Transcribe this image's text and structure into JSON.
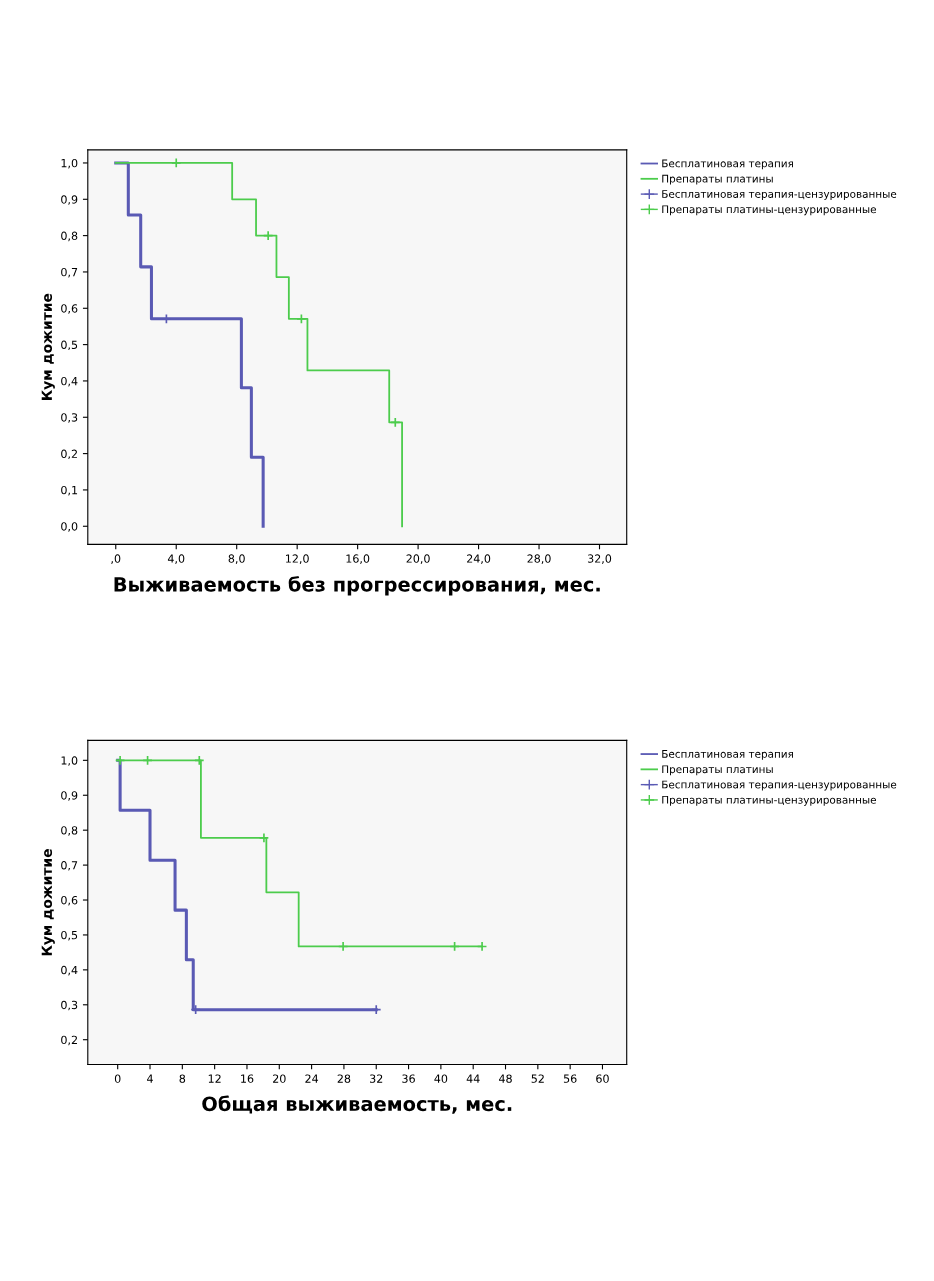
{
  "chart_data": [
    {
      "type": "step",
      "xlabel": "Выживаемость без прогрессирования, мес.",
      "ylabel": "Кум дожитие",
      "xlim": [
        -1.85,
        33.8
      ],
      "ylim": [
        -0.05,
        1.036
      ],
      "xticks": [
        {
          "value": 0,
          "label": ",0"
        },
        {
          "value": 4,
          "label": "4,0"
        },
        {
          "value": 8,
          "label": "8,0"
        },
        {
          "value": 12,
          "label": "12,0"
        },
        {
          "value": 16,
          "label": "16,0"
        },
        {
          "value": 20,
          "label": "20,0"
        },
        {
          "value": 24,
          "label": "24,0"
        },
        {
          "value": 28,
          "label": "28,0"
        },
        {
          "value": 32,
          "label": "32,0"
        }
      ],
      "yticks": [
        {
          "value": 0,
          "label": "0,0"
        },
        {
          "value": 0.1,
          "label": "0,1"
        },
        {
          "value": 0.2,
          "label": "0,2"
        },
        {
          "value": 0.3,
          "label": "0,3"
        },
        {
          "value": 0.4,
          "label": "0,4"
        },
        {
          "value": 0.5,
          "label": "0,5"
        },
        {
          "value": 0.6,
          "label": "0,6"
        },
        {
          "value": 0.7,
          "label": "0,7"
        },
        {
          "value": 0.8,
          "label": "0,8"
        },
        {
          "value": 0.9,
          "label": "0,9"
        },
        {
          "value": 1.0,
          "label": "1,0"
        }
      ],
      "grid": false,
      "legend": "right",
      "series": [
        {
          "name": "Бесплатиновая терапия",
          "color": "#5a5ab4",
          "x": [
            0,
            0.83,
            1.65,
            2.36,
            8.31,
            8.97,
            9.75
          ],
          "values": [
            1,
            0.857,
            0.714,
            0.571,
            0.381,
            0.19,
            0
          ]
        },
        {
          "name": "Препараты платины",
          "color": "#4ccc4c",
          "x": [
            0,
            7.7,
            9.28,
            10.63,
            11.45,
            12.68,
            18.09,
            18.94
          ],
          "values": [
            1,
            0.9,
            0.8,
            0.686,
            0.571,
            0.429,
            0.286,
            0
          ]
        },
        {
          "name": "Бесплатиновая терапия-цензурированные",
          "type": "scatter",
          "marker": "cross",
          "color": "#5a5ab4",
          "x": [
            3.35
          ],
          "values": [
            0.571
          ]
        },
        {
          "name": "Препараты платины-цензурированные",
          "type": "scatter",
          "marker": "cross",
          "color": "#4ccc4c",
          "x": [
            4.0,
            10.08,
            12.28,
            18.49
          ],
          "values": [
            1,
            0.8,
            0.571,
            0.286
          ]
        }
      ]
    },
    {
      "type": "step",
      "xlabel": "Общая выживаемость, мес.",
      "ylabel": "Кум дожитие",
      "xlim": [
        -3.7,
        63
      ],
      "ylim": [
        0.129,
        1.057
      ],
      "xticks": [
        0,
        4,
        8,
        12,
        16,
        20,
        24,
        28,
        32,
        36,
        40,
        44,
        48,
        52,
        56,
        60
      ],
      "yticks": [
        {
          "value": 0.2,
          "label": "0,2"
        },
        {
          "value": 0.3,
          "label": "0,3"
        },
        {
          "value": 0.4,
          "label": "0,4"
        },
        {
          "value": 0.5,
          "label": "0,5"
        },
        {
          "value": 0.6,
          "label": "0,6"
        },
        {
          "value": 0.7,
          "label": "0,7"
        },
        {
          "value": 0.8,
          "label": "0,8"
        },
        {
          "value": 0.9,
          "label": "0,9"
        },
        {
          "value": 1.0,
          "label": "1,0"
        }
      ],
      "grid": false,
      "legend": "right",
      "series": [
        {
          "name": "Бесплатиновая терапия",
          "color": "#5a5ab4",
          "x": [
            0,
            0.3,
            4.0,
            7.1,
            8.5,
            9.35,
            32
          ],
          "values": [
            1,
            0.857,
            0.714,
            0.571,
            0.429,
            0.286,
            0.286
          ]
        },
        {
          "name": "Препараты платины",
          "color": "#4ccc4c",
          "x": [
            0,
            10.3,
            18.4,
            22.4,
            45.1
          ],
          "values": [
            1,
            0.778,
            0.622,
            0.467,
            0.467
          ]
        },
        {
          "name": "Бесплатиновая терапия-цензурированные",
          "type": "scatter",
          "marker": "cross",
          "color": "#5a5ab4",
          "x": [
            9.65,
            32
          ],
          "values": [
            0.286,
            0.286
          ]
        },
        {
          "name": "Препараты платины-цензурированные",
          "type": "scatter",
          "marker": "cross",
          "color": "#4ccc4c",
          "x": [
            0.3,
            3.7,
            10.1,
            18.1,
            27.9,
            41.7,
            45.1
          ],
          "values": [
            1,
            1,
            1,
            0.778,
            0.467,
            0.467,
            0.467
          ]
        }
      ]
    }
  ]
}
